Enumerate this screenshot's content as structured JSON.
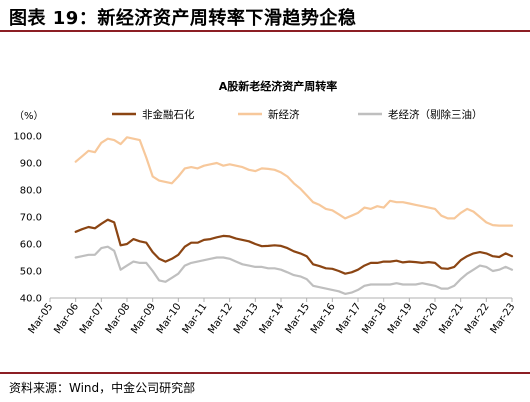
{
  "page": {
    "title": "图表 19：新经济资产周转率下滑趋势企稳",
    "source": "资料来源：Wind，中金公司研究部"
  },
  "colors": {
    "rule": "#8c1e24",
    "axis": "#b0b0b0"
  },
  "chart_data": {
    "type": "line",
    "title": "A股新老经济资产周转率",
    "unit_label": "（%）",
    "ylim": [
      40,
      100
    ],
    "yticks": [
      "40.0",
      "50.0",
      "60.0",
      "70.0",
      "80.0",
      "90.0",
      "100.0"
    ],
    "ytick_values": [
      40,
      50,
      60,
      70,
      80,
      90,
      100
    ],
    "x_start": "Mar-05",
    "x_end": "Mar-23",
    "x_start_value": 2005,
    "x_end_value": 2023,
    "xticks": [
      "Mar-05",
      "Mar-06",
      "Mar-07",
      "Mar-08",
      "Mar-09",
      "Mar-10",
      "Mar-11",
      "Mar-12",
      "Mar-13",
      "Mar-14",
      "Mar-15",
      "Mar-16",
      "Mar-17",
      "Mar-18",
      "Mar-19",
      "Mar-20",
      "Mar-21",
      "Mar-22",
      "Mar-23"
    ],
    "grid": false,
    "legend_position": "top",
    "series": [
      {
        "name": "非金融石化",
        "color": "#8b4513",
        "width": 2.2,
        "points": [
          [
            2006.0,
            64.5
          ],
          [
            2006.25,
            65.5
          ],
          [
            2006.5,
            66.3
          ],
          [
            2006.75,
            65.8
          ],
          [
            2007.0,
            67.5
          ],
          [
            2007.25,
            69.0
          ],
          [
            2007.5,
            68.0
          ],
          [
            2007.75,
            59.5
          ],
          [
            2008.0,
            60.0
          ],
          [
            2008.25,
            61.8
          ],
          [
            2008.5,
            61.0
          ],
          [
            2008.75,
            60.5
          ],
          [
            2009.0,
            57.0
          ],
          [
            2009.25,
            54.5
          ],
          [
            2009.5,
            53.5
          ],
          [
            2009.75,
            54.5
          ],
          [
            2010.0,
            56.0
          ],
          [
            2010.25,
            59.0
          ],
          [
            2010.5,
            60.5
          ],
          [
            2010.75,
            60.5
          ],
          [
            2011.0,
            61.5
          ],
          [
            2011.25,
            61.8
          ],
          [
            2011.5,
            62.5
          ],
          [
            2011.75,
            63.0
          ],
          [
            2012.0,
            62.8
          ],
          [
            2012.25,
            62.0
          ],
          [
            2012.5,
            61.5
          ],
          [
            2012.75,
            61.0
          ],
          [
            2013.0,
            60.0
          ],
          [
            2013.25,
            59.2
          ],
          [
            2013.5,
            59.3
          ],
          [
            2013.75,
            59.5
          ],
          [
            2014.0,
            59.3
          ],
          [
            2014.25,
            58.5
          ],
          [
            2014.5,
            57.3
          ],
          [
            2014.75,
            56.5
          ],
          [
            2015.0,
            55.5
          ],
          [
            2015.25,
            52.5
          ],
          [
            2015.5,
            51.8
          ],
          [
            2015.75,
            51.0
          ],
          [
            2016.0,
            50.8
          ],
          [
            2016.25,
            50.0
          ],
          [
            2016.5,
            49.0
          ],
          [
            2016.75,
            49.5
          ],
          [
            2017.0,
            50.5
          ],
          [
            2017.25,
            52.0
          ],
          [
            2017.5,
            53.0
          ],
          [
            2017.75,
            53.0
          ],
          [
            2018.0,
            53.5
          ],
          [
            2018.25,
            53.5
          ],
          [
            2018.5,
            53.8
          ],
          [
            2018.75,
            53.2
          ],
          [
            2019.0,
            53.5
          ],
          [
            2019.25,
            53.3
          ],
          [
            2019.5,
            53.0
          ],
          [
            2019.75,
            53.3
          ],
          [
            2020.0,
            53.0
          ],
          [
            2020.25,
            51.0
          ],
          [
            2020.5,
            50.8
          ],
          [
            2020.75,
            51.5
          ],
          [
            2021.0,
            54.0
          ],
          [
            2021.25,
            55.5
          ],
          [
            2021.5,
            56.5
          ],
          [
            2021.75,
            57.0
          ],
          [
            2022.0,
            56.5
          ],
          [
            2022.25,
            55.5
          ],
          [
            2022.5,
            55.2
          ],
          [
            2022.75,
            56.5
          ],
          [
            2023.0,
            55.5
          ]
        ]
      },
      {
        "name": "新经济",
        "color": "#f7c89b",
        "width": 2.2,
        "points": [
          [
            2006.0,
            90.5
          ],
          [
            2006.25,
            92.5
          ],
          [
            2006.5,
            94.5
          ],
          [
            2006.75,
            94.0
          ],
          [
            2007.0,
            97.5
          ],
          [
            2007.25,
            99.0
          ],
          [
            2007.5,
            98.5
          ],
          [
            2007.75,
            97.0
          ],
          [
            2008.0,
            99.5
          ],
          [
            2008.25,
            99.0
          ],
          [
            2008.5,
            98.5
          ],
          [
            2008.75,
            92.0
          ],
          [
            2009.0,
            85.0
          ],
          [
            2009.25,
            83.5
          ],
          [
            2009.5,
            83.0
          ],
          [
            2009.75,
            82.5
          ],
          [
            2010.0,
            85.0
          ],
          [
            2010.25,
            88.0
          ],
          [
            2010.5,
            88.5
          ],
          [
            2010.75,
            88.0
          ],
          [
            2011.0,
            89.0
          ],
          [
            2011.25,
            89.5
          ],
          [
            2011.5,
            90.0
          ],
          [
            2011.75,
            89.0
          ],
          [
            2012.0,
            89.5
          ],
          [
            2012.25,
            89.0
          ],
          [
            2012.5,
            88.5
          ],
          [
            2012.75,
            87.5
          ],
          [
            2013.0,
            87.0
          ],
          [
            2013.25,
            88.0
          ],
          [
            2013.5,
            87.8
          ],
          [
            2013.75,
            87.5
          ],
          [
            2014.0,
            86.5
          ],
          [
            2014.25,
            85.0
          ],
          [
            2014.5,
            82.5
          ],
          [
            2014.75,
            80.5
          ],
          [
            2015.0,
            78.0
          ],
          [
            2015.25,
            75.5
          ],
          [
            2015.5,
            74.5
          ],
          [
            2015.75,
            73.0
          ],
          [
            2016.0,
            72.5
          ],
          [
            2016.25,
            71.0
          ],
          [
            2016.5,
            69.5
          ],
          [
            2016.75,
            70.5
          ],
          [
            2017.0,
            71.5
          ],
          [
            2017.25,
            73.5
          ],
          [
            2017.5,
            73.0
          ],
          [
            2017.75,
            74.0
          ],
          [
            2018.0,
            73.5
          ],
          [
            2018.25,
            76.0
          ],
          [
            2018.5,
            75.5
          ],
          [
            2018.75,
            75.5
          ],
          [
            2019.0,
            75.0
          ],
          [
            2019.25,
            74.5
          ],
          [
            2019.5,
            74.0
          ],
          [
            2019.75,
            73.5
          ],
          [
            2020.0,
            73.0
          ],
          [
            2020.25,
            70.5
          ],
          [
            2020.5,
            69.5
          ],
          [
            2020.75,
            69.5
          ],
          [
            2021.0,
            71.5
          ],
          [
            2021.25,
            73.0
          ],
          [
            2021.5,
            72.0
          ],
          [
            2021.75,
            70.0
          ],
          [
            2022.0,
            68.0
          ],
          [
            2022.25,
            67.0
          ],
          [
            2022.5,
            66.8
          ],
          [
            2022.75,
            66.8
          ],
          [
            2023.0,
            66.8
          ]
        ]
      },
      {
        "name": "老经济（剔除三油）",
        "color": "#bfbfbf",
        "width": 2.2,
        "points": [
          [
            2006.0,
            55.0
          ],
          [
            2006.25,
            55.5
          ],
          [
            2006.5,
            56.0
          ],
          [
            2006.75,
            56.0
          ],
          [
            2007.0,
            58.5
          ],
          [
            2007.25,
            59.0
          ],
          [
            2007.5,
            57.5
          ],
          [
            2007.75,
            50.5
          ],
          [
            2008.0,
            52.0
          ],
          [
            2008.25,
            53.5
          ],
          [
            2008.5,
            53.0
          ],
          [
            2008.75,
            53.0
          ],
          [
            2009.0,
            50.0
          ],
          [
            2009.25,
            46.5
          ],
          [
            2009.5,
            46.0
          ],
          [
            2009.75,
            47.5
          ],
          [
            2010.0,
            49.0
          ],
          [
            2010.25,
            52.0
          ],
          [
            2010.5,
            53.0
          ],
          [
            2010.75,
            53.5
          ],
          [
            2011.0,
            54.0
          ],
          [
            2011.25,
            54.5
          ],
          [
            2011.5,
            55.0
          ],
          [
            2011.75,
            55.0
          ],
          [
            2012.0,
            54.5
          ],
          [
            2012.25,
            53.5
          ],
          [
            2012.5,
            52.5
          ],
          [
            2012.75,
            52.0
          ],
          [
            2013.0,
            51.5
          ],
          [
            2013.25,
            51.5
          ],
          [
            2013.5,
            51.0
          ],
          [
            2013.75,
            51.0
          ],
          [
            2014.0,
            50.5
          ],
          [
            2014.25,
            49.5
          ],
          [
            2014.5,
            48.5
          ],
          [
            2014.75,
            48.0
          ],
          [
            2015.0,
            47.0
          ],
          [
            2015.25,
            44.5
          ],
          [
            2015.5,
            44.0
          ],
          [
            2015.75,
            43.5
          ],
          [
            2016.0,
            43.0
          ],
          [
            2016.25,
            42.5
          ],
          [
            2016.5,
            41.5
          ],
          [
            2016.75,
            42.0
          ],
          [
            2017.0,
            43.0
          ],
          [
            2017.25,
            44.5
          ],
          [
            2017.5,
            45.0
          ],
          [
            2017.75,
            45.0
          ],
          [
            2018.0,
            45.0
          ],
          [
            2018.25,
            45.0
          ],
          [
            2018.5,
            45.5
          ],
          [
            2018.75,
            45.0
          ],
          [
            2019.0,
            45.0
          ],
          [
            2019.25,
            45.0
          ],
          [
            2019.5,
            45.5
          ],
          [
            2019.75,
            45.0
          ],
          [
            2020.0,
            44.5
          ],
          [
            2020.25,
            43.5
          ],
          [
            2020.5,
            43.5
          ],
          [
            2020.75,
            44.5
          ],
          [
            2021.0,
            47.0
          ],
          [
            2021.25,
            49.0
          ],
          [
            2021.5,
            50.5
          ],
          [
            2021.75,
            52.0
          ],
          [
            2022.0,
            51.5
          ],
          [
            2022.25,
            50.0
          ],
          [
            2022.5,
            50.5
          ],
          [
            2022.75,
            51.5
          ],
          [
            2023.0,
            50.5
          ]
        ]
      }
    ]
  }
}
